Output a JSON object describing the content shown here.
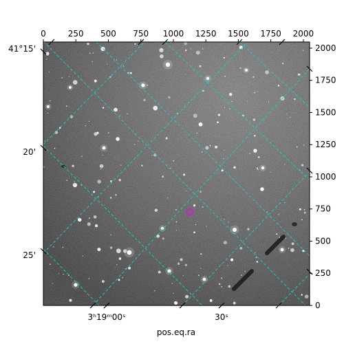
{
  "plot": {
    "xlabel": "pos.eq.ra",
    "top_ticks": [
      "0",
      "250",
      "500",
      "750",
      "1000",
      "1250",
      "1500",
      "1750",
      "2000"
    ],
    "top_tick_values": [
      0,
      250,
      500,
      750,
      1000,
      1250,
      1500,
      1750,
      2000
    ],
    "right_ticks": [
      "2000",
      "1750",
      "1500",
      "1250",
      "1000",
      "750",
      "500",
      "250",
      "0"
    ],
    "right_tick_values": [
      2000,
      1750,
      1500,
      1250,
      1000,
      750,
      500,
      250,
      0
    ],
    "left_ticks": [
      {
        "deg": "41°15'",
        "plain": ""
      },
      {
        "deg": "20'",
        "plain": ""
      },
      {
        "deg": "25'",
        "plain": ""
      }
    ],
    "bottom_ticks": [
      {
        "text": "3ʰ19ᵐ00ˢ"
      },
      {
        "text": "30ˢ"
      }
    ],
    "pixel_range": [
      0,
      2048
    ],
    "grid_color": "#22cccc",
    "marker_color": "#d020d0"
  }
}
